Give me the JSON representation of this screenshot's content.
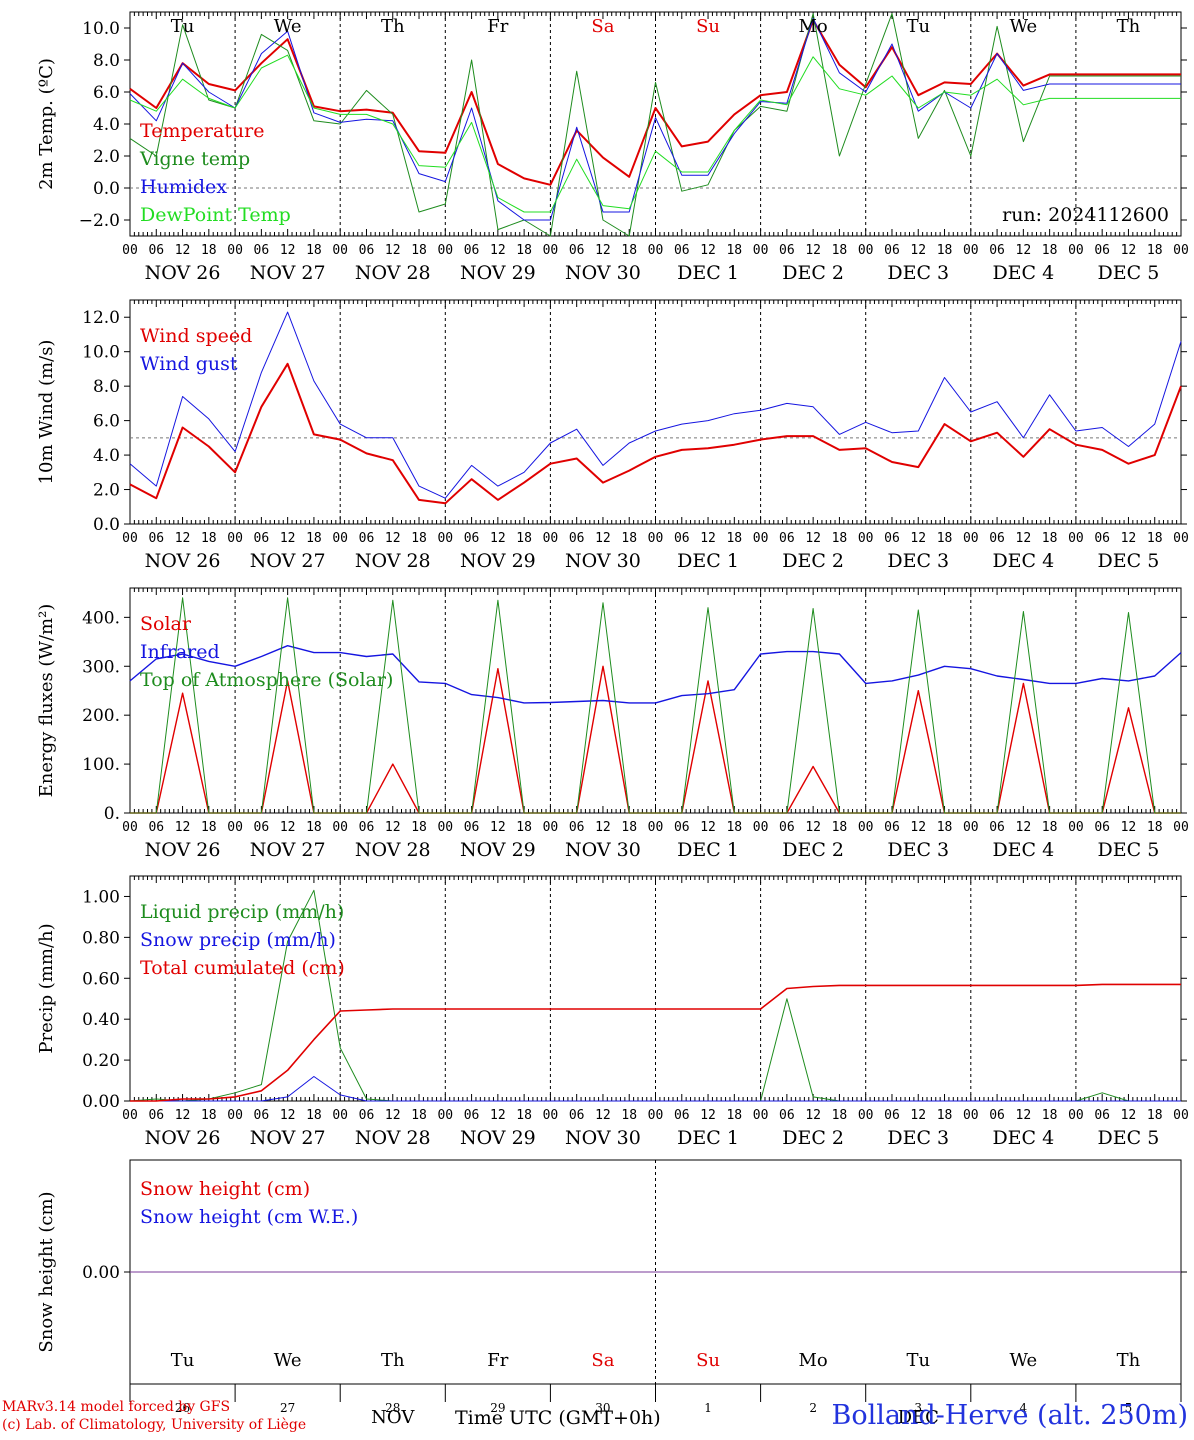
{
  "colors": {
    "red": "#e00000",
    "green": "#1e8c1e",
    "blue": "#1515e0",
    "lightgreen": "#22dd22",
    "grid": "#000000",
    "purple": "#7a3a9a"
  },
  "days": [
    "Tu",
    "We",
    "Th",
    "Fr",
    "Sa",
    "Su",
    "Mo",
    "Tu",
    "We",
    "Th"
  ],
  "day_colors": [
    "#000000",
    "#000000",
    "#000000",
    "#000000",
    "#e00000",
    "#e00000",
    "#000000",
    "#000000",
    "#000000",
    "#000000"
  ],
  "date_labels": [
    "NOV 26",
    "NOV 27",
    "NOV 28",
    "NOV 29",
    "NOV 30",
    "DEC  1",
    "DEC  2",
    "DEC  3",
    "DEC  4",
    "DEC  5"
  ],
  "hour_ticks": [
    "00",
    "06",
    "12",
    "18"
  ],
  "day_numbers": [
    "26",
    "27",
    "28",
    "29",
    "30",
    "1",
    "2",
    "3",
    "4",
    "5"
  ],
  "month_labels": [
    "NOV",
    "DEC"
  ],
  "time_label": "Time UTC (GMT+0h)",
  "footer": {
    "line1": "MARv3.14 model forced by GFS",
    "line2": "(c) Lab. of Climatology, University of Liège"
  },
  "station": "Bolland-Herve (alt. 250m)",
  "chart_data": [
    {
      "type": "line",
      "ylabel": "2m Temp. (ºC)",
      "ylim": [
        -3,
        11
      ],
      "yticks": [
        -2.0,
        0.0,
        2.0,
        4.0,
        6.0,
        8.0,
        10.0
      ],
      "yticklabels": [
        "−2.0",
        "0.0",
        "2.0",
        "4.0",
        "6.0",
        "8.0",
        "10.0"
      ],
      "hline": 0,
      "show_days": true,
      "annotation": "run: 2024112600",
      "x_hours": [
        0,
        6,
        12,
        18,
        24,
        30,
        36,
        42,
        48,
        54,
        60,
        66,
        72,
        78,
        84,
        90,
        96,
        102,
        108,
        114,
        120,
        126,
        132,
        138,
        144,
        150,
        156,
        162,
        168,
        174,
        180,
        186,
        192,
        198,
        204,
        210,
        216,
        222,
        228,
        234,
        240
      ],
      "series": [
        {
          "name": "Temperature",
          "color": "#e00000",
          "width": 2,
          "values": [
            6.2,
            5.0,
            7.8,
            6.5,
            6.1,
            7.8,
            9.3,
            5.1,
            4.8,
            4.9,
            4.7,
            2.3,
            2.2,
            6.0,
            1.5,
            0.6,
            0.2,
            3.6,
            1.9,
            0.7,
            5.0,
            2.6,
            2.9,
            4.6,
            5.8,
            6.0,
            10.5,
            7.7,
            6.3,
            8.8,
            5.8,
            6.6,
            6.5,
            8.4,
            6.4,
            7.1,
            7.1,
            7.1,
            7.1,
            7.1,
            7.1
          ]
        },
        {
          "name": "Vigne temp",
          "color": "#1e8c1e",
          "width": 1,
          "values": [
            3.1,
            2.0,
            10.2,
            5.5,
            5.0,
            9.6,
            8.6,
            4.2,
            4.0,
            6.1,
            4.6,
            -1.5,
            -1.0,
            8.0,
            -2.6,
            -2.0,
            -3.0,
            7.3,
            -2.0,
            -3.0,
            6.6,
            -0.2,
            0.2,
            3.6,
            5.1,
            4.8,
            10.9,
            2.0,
            6.5,
            10.9,
            3.1,
            6.1,
            2.0,
            10.1,
            2.9,
            7.0,
            7.0,
            7.0,
            7.0,
            7.0,
            7.0
          ]
        },
        {
          "name": "Humidex",
          "color": "#1515e0",
          "width": 1,
          "values": [
            5.9,
            4.2,
            7.8,
            6.0,
            5.0,
            8.4,
            9.8,
            4.7,
            4.1,
            4.3,
            4.2,
            0.9,
            0.4,
            5.0,
            -0.8,
            -2.0,
            -2.0,
            3.8,
            -1.5,
            -1.5,
            4.4,
            0.8,
            0.8,
            3.4,
            5.4,
            5.3,
            10.6,
            7.2,
            6.0,
            9.0,
            4.8,
            6.0,
            5.0,
            8.4,
            6.1,
            6.5,
            6.5,
            6.5,
            6.5,
            6.5,
            6.5
          ]
        },
        {
          "name": "DewPoint Temp",
          "color": "#22dd22",
          "width": 1,
          "values": [
            5.5,
            4.8,
            6.8,
            5.6,
            5.0,
            7.5,
            8.3,
            5.0,
            4.6,
            4.6,
            4.0,
            1.4,
            1.3,
            4.1,
            -0.6,
            -1.5,
            -1.5,
            1.8,
            -1.1,
            -1.3,
            2.3,
            1.0,
            1.0,
            3.6,
            5.5,
            5.2,
            8.2,
            6.2,
            5.8,
            7.0,
            5.0,
            6.0,
            5.8,
            6.8,
            5.2,
            5.6,
            5.6,
            5.6,
            5.6,
            5.6,
            5.6
          ]
        }
      ]
    },
    {
      "type": "line",
      "ylabel": "10m Wind (m/s)",
      "ylim": [
        0,
        13
      ],
      "yticks": [
        0,
        2,
        4,
        6,
        8,
        10,
        12
      ],
      "yticklabels": [
        "0.0",
        "2.0",
        "4.0",
        "6.0",
        "8.0",
        "10.0",
        "12.0"
      ],
      "hline": 5,
      "x_hours": [
        0,
        6,
        12,
        18,
        24,
        30,
        36,
        42,
        48,
        54,
        60,
        66,
        72,
        78,
        84,
        90,
        96,
        102,
        108,
        114,
        120,
        126,
        132,
        138,
        144,
        150,
        156,
        162,
        168,
        174,
        180,
        186,
        192,
        198,
        204,
        210,
        216,
        222,
        228,
        234,
        240
      ],
      "series": [
        {
          "name": "Wind speed",
          "color": "#e00000",
          "width": 2,
          "values": [
            2.3,
            1.5,
            5.6,
            4.5,
            3.0,
            6.8,
            9.3,
            5.2,
            4.9,
            4.1,
            3.7,
            1.4,
            1.2,
            2.6,
            1.4,
            2.4,
            3.5,
            3.8,
            2.4,
            3.1,
            3.9,
            4.3,
            4.4,
            4.6,
            4.9,
            5.1,
            5.1,
            4.3,
            4.4,
            3.6,
            3.3,
            5.8,
            4.8,
            5.3,
            3.9,
            5.5,
            4.6,
            4.3,
            3.5,
            4.0,
            8.0
          ]
        },
        {
          "name": "Wind gust",
          "color": "#1515e0",
          "width": 1,
          "values": [
            3.5,
            2.2,
            7.4,
            6.1,
            4.2,
            8.8,
            12.3,
            8.3,
            5.8,
            5.0,
            5.0,
            2.2,
            1.5,
            3.4,
            2.2,
            3.0,
            4.7,
            5.5,
            3.4,
            4.7,
            5.4,
            5.8,
            6.0,
            6.4,
            6.6,
            7.0,
            6.8,
            5.2,
            5.9,
            5.3,
            5.4,
            8.5,
            6.5,
            7.1,
            5.0,
            7.5,
            5.4,
            5.6,
            4.5,
            5.8,
            10.6
          ]
        }
      ]
    },
    {
      "type": "line",
      "ylabel": "Energy fluxes (W/m²)",
      "ylim": [
        0,
        460
      ],
      "yticks": [
        0,
        100,
        200,
        300,
        400
      ],
      "yticklabels": [
        "0.",
        "100.",
        "200.",
        "300.",
        "400."
      ],
      "x_hours": [
        0,
        6,
        12,
        18,
        24,
        30,
        36,
        42,
        48,
        54,
        60,
        66,
        72,
        78,
        84,
        90,
        96,
        102,
        108,
        114,
        120,
        126,
        132,
        138,
        144,
        150,
        156,
        162,
        168,
        174,
        180,
        186,
        192,
        198,
        204,
        210,
        216,
        222,
        228,
        234,
        240
      ],
      "series": [
        {
          "name": "Solar",
          "color": "#e00000",
          "width": 1.4,
          "values": [
            0,
            0,
            245,
            0,
            0,
            0,
            270,
            0,
            0,
            0,
            100,
            0,
            0,
            0,
            295,
            0,
            0,
            0,
            300,
            0,
            0,
            0,
            270,
            0,
            0,
            0,
            95,
            0,
            0,
            0,
            250,
            0,
            0,
            0,
            265,
            0,
            0,
            0,
            215,
            0,
            0
          ]
        },
        {
          "name": "Infrared",
          "color": "#1515e0",
          "width": 1.4,
          "values": [
            270,
            315,
            325,
            310,
            300,
            320,
            342,
            328,
            328,
            320,
            325,
            268,
            265,
            242,
            236,
            225,
            226,
            228,
            230,
            225,
            225,
            240,
            244,
            252,
            325,
            330,
            330,
            325,
            265,
            270,
            282,
            300,
            295,
            280,
            273,
            265,
            265,
            275,
            270,
            280,
            328
          ]
        },
        {
          "name": "Top of Atmosphere (Solar)",
          "color": "#1e8c1e",
          "width": 1,
          "values": [
            0,
            0,
            440,
            0,
            0,
            0,
            440,
            0,
            0,
            0,
            435,
            0,
            0,
            0,
            435,
            0,
            0,
            0,
            430,
            0,
            0,
            0,
            420,
            0,
            0,
            0,
            418,
            0,
            0,
            0,
            415,
            0,
            0,
            0,
            412,
            0,
            0,
            0,
            410,
            0,
            0
          ]
        }
      ]
    },
    {
      "type": "line",
      "ylabel": "Precip (mm/h)",
      "ylim": [
        0,
        1.1
      ],
      "yticks": [
        0,
        0.2,
        0.4,
        0.6,
        0.8,
        1.0
      ],
      "yticklabels": [
        "0.00",
        "0.20",
        "0.40",
        "0.60",
        "0.80",
        "1.00"
      ],
      "x_hours": [
        0,
        6,
        12,
        18,
        24,
        30,
        36,
        42,
        48,
        54,
        60,
        66,
        72,
        78,
        84,
        90,
        96,
        102,
        108,
        114,
        120,
        126,
        132,
        138,
        144,
        150,
        156,
        162,
        168,
        174,
        180,
        186,
        192,
        198,
        204,
        210,
        216,
        222,
        228,
        234,
        240
      ],
      "series": [
        {
          "name": "Liquid precip (mm/h)",
          "color": "#1e8c1e",
          "width": 1,
          "values": [
            0,
            0.01,
            0,
            0.01,
            0.04,
            0.08,
            0.78,
            1.03,
            0.26,
            0.01,
            0,
            0,
            0,
            0,
            0,
            0,
            0,
            0,
            0,
            0,
            0,
            0,
            0,
            0,
            0,
            0.5,
            0.02,
            0,
            0,
            0,
            0,
            0,
            0,
            0,
            0,
            0,
            0,
            0.04,
            0,
            0,
            0
          ]
        },
        {
          "name": "Snow precip (mm/h)",
          "color": "#1515e0",
          "width": 1,
          "values": [
            0,
            0,
            0,
            0,
            0,
            0,
            0.02,
            0.12,
            0.03,
            0,
            0,
            0,
            0,
            0,
            0,
            0,
            0,
            0,
            0,
            0,
            0,
            0,
            0,
            0,
            0,
            0,
            0,
            0,
            0,
            0,
            0,
            0,
            0,
            0,
            0,
            0,
            0,
            0,
            0,
            0,
            0
          ]
        },
        {
          "name": "Total cumulated (cm)",
          "color": "#e00000",
          "width": 1.6,
          "values": [
            0,
            0,
            0.01,
            0.01,
            0.02,
            0.05,
            0.15,
            0.3,
            0.44,
            0.445,
            0.45,
            0.45,
            0.45,
            0.45,
            0.45,
            0.45,
            0.45,
            0.45,
            0.45,
            0.45,
            0.45,
            0.45,
            0.45,
            0.45,
            0.45,
            0.55,
            0.56,
            0.565,
            0.565,
            0.565,
            0.565,
            0.565,
            0.565,
            0.565,
            0.565,
            0.565,
            0.565,
            0.57,
            0.57,
            0.57,
            0.57
          ]
        }
      ]
    },
    {
      "type": "line",
      "ylabel": "Snow height (cm)",
      "ylim": [
        -1,
        1
      ],
      "yticks": [
        0
      ],
      "yticklabels": [
        "0.00"
      ],
      "x_hours": [
        0,
        240
      ],
      "series": [
        {
          "name": "Snow height (cm)",
          "color": "#e00000",
          "width": 1,
          "values": [
            0,
            0
          ]
        },
        {
          "name": "Snow height (cm W.E.)",
          "color": "#1515e0",
          "width": 1,
          "values": [
            0,
            0
          ]
        }
      ]
    }
  ]
}
